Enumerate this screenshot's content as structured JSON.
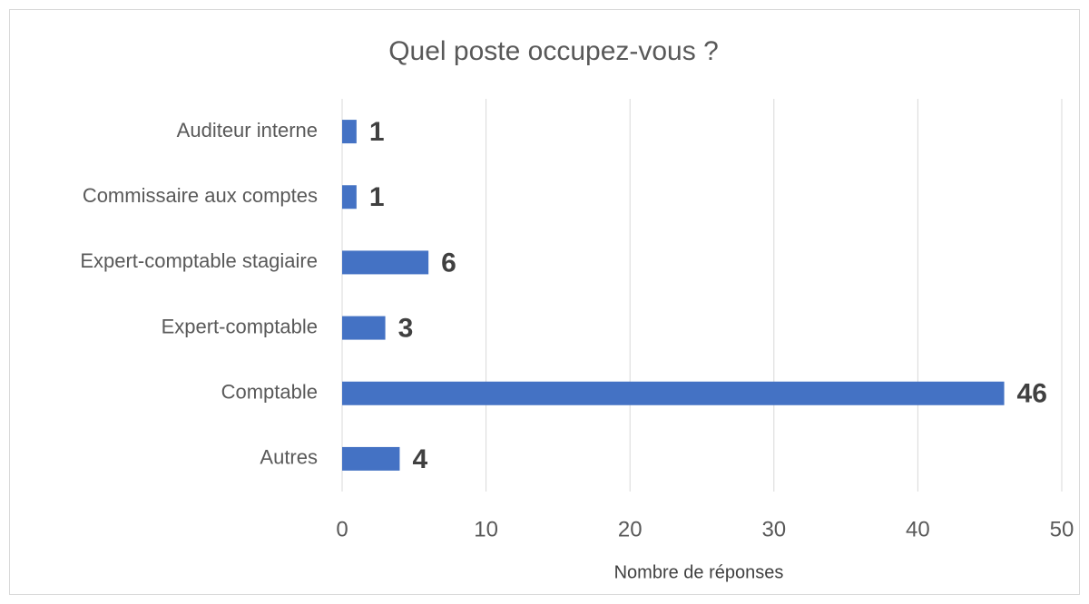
{
  "chart_data": {
    "type": "barh",
    "title": "Quel poste occupez-vous ?",
    "categories": [
      "Auditeur interne",
      "Commissaire aux comptes",
      "Expert-comptable stagiaire",
      "Expert-comptable",
      "Comptable",
      "Autres"
    ],
    "values": [
      1,
      1,
      6,
      3,
      46,
      4
    ],
    "color": "#4472c4",
    "xlabel": "Nombre de réponses",
    "xlim": [
      0,
      50
    ],
    "xticks": [
      0,
      10,
      20,
      30,
      40,
      50
    ],
    "grid": true
  }
}
